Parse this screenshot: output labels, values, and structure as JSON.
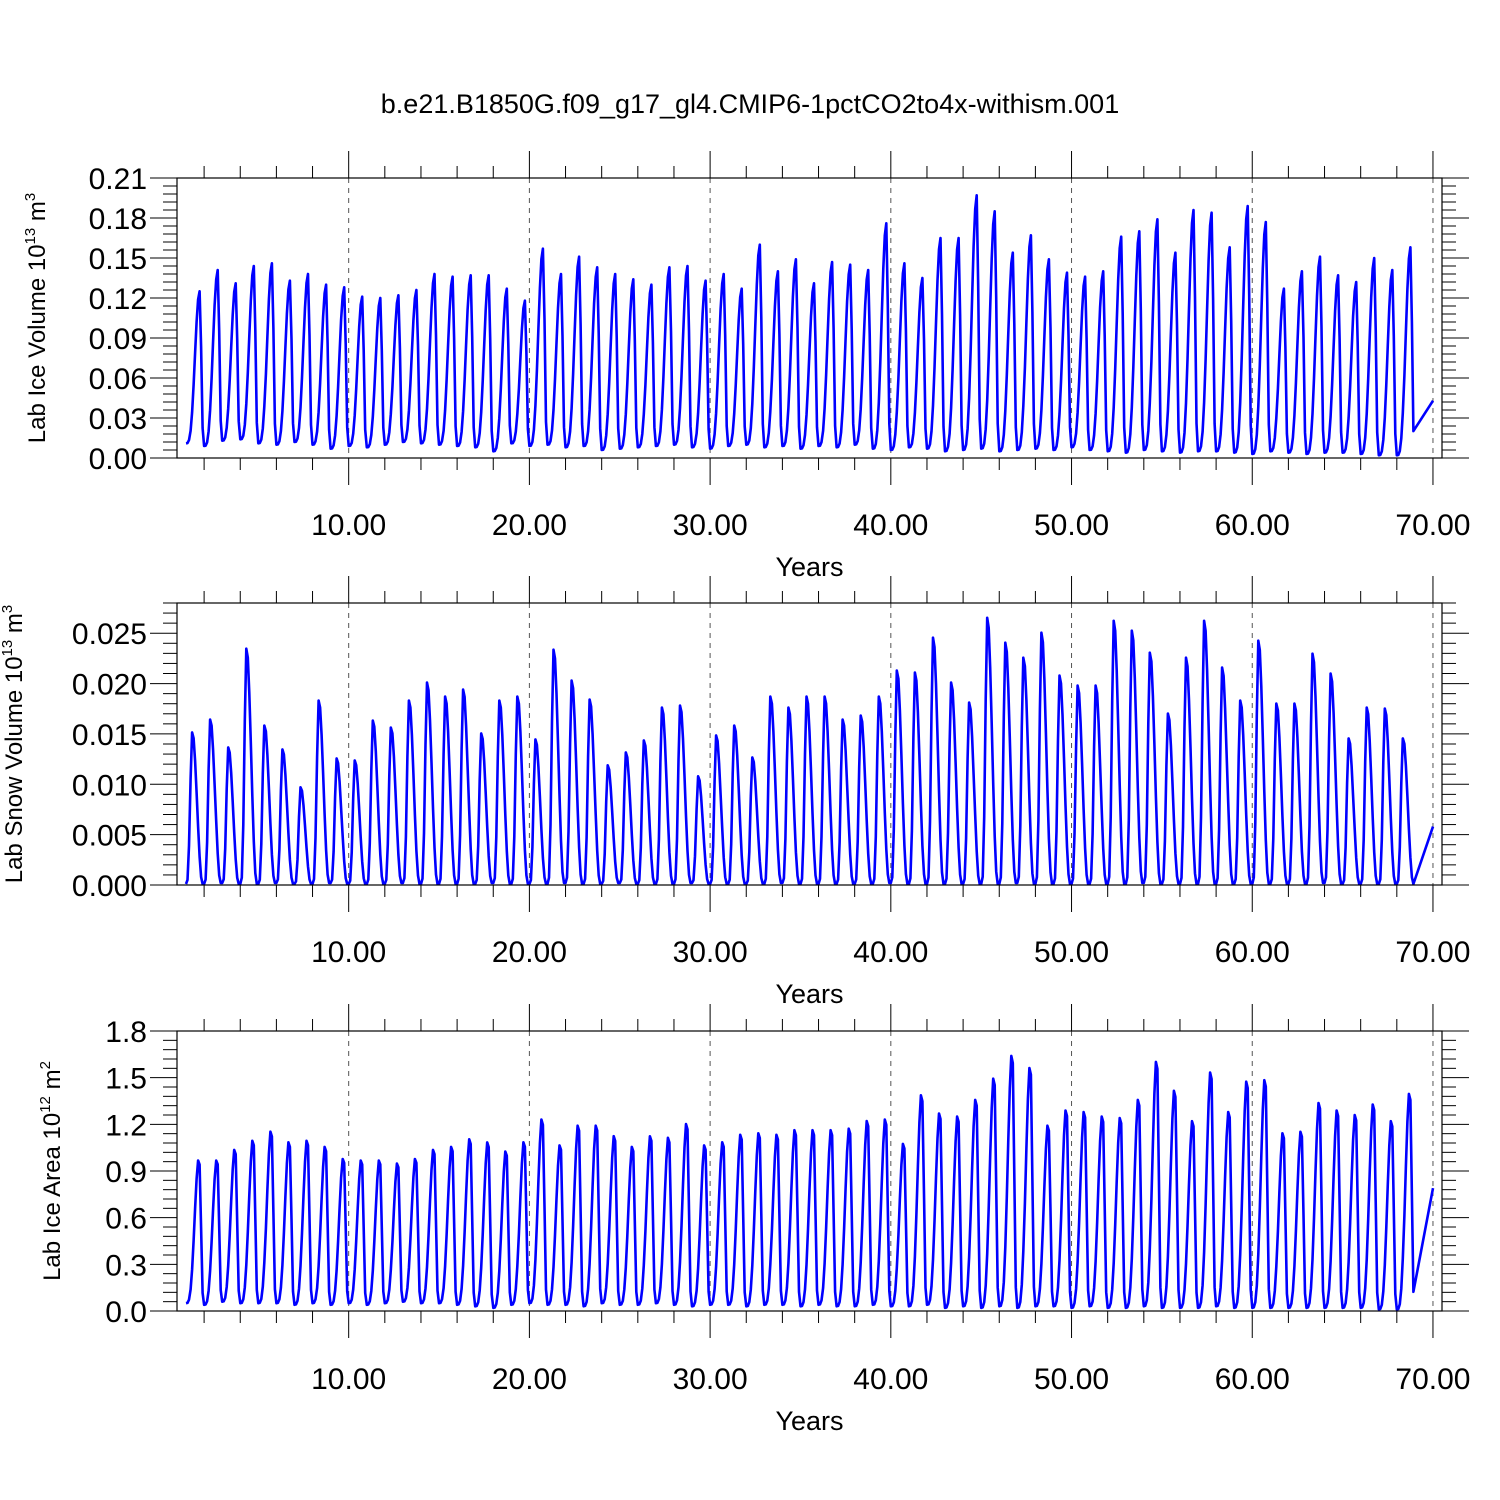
{
  "title": "b.e21.B1850G.f09_g17_gl4.CMIP6-1pctCO2to4x-withism.001",
  "colors": {
    "series": "#0000ff",
    "axes": "#000000",
    "grid": "#555555"
  },
  "chart_data": [
    {
      "type": "line",
      "title": "",
      "ylabel": {
        "main": "Lab Ice Volume 10",
        "exp": "13",
        "unit": " m",
        "unit_exp": "3"
      },
      "xlabel": "Years",
      "xlim": [
        0.5,
        70.5
      ],
      "ylim": [
        0,
        0.21
      ],
      "xticks": [
        10,
        20,
        30,
        40,
        50,
        60,
        70
      ],
      "xtick_labels": [
        "10.00",
        "20.00",
        "30.00",
        "40.00",
        "50.00",
        "60.00",
        "70.00"
      ],
      "yticks": [
        0,
        0.03,
        0.06,
        0.09,
        0.12,
        0.15,
        0.18,
        0.21
      ],
      "ytick_labels": [
        "0.00",
        "0.03",
        "0.06",
        "0.09",
        "0.12",
        "0.15",
        "0.18",
        "0.21"
      ],
      "grid": "x dashed",
      "seasonal_cycle": {
        "period": 1,
        "peak_phase": 0.75
      },
      "series": [
        {
          "x_start": 1,
          "x_end": 70,
          "annual_max": [
            0.125,
            0.141,
            0.131,
            0.144,
            0.146,
            0.133,
            0.138,
            0.13,
            0.128,
            0.121,
            0.12,
            0.122,
            0.126,
            0.138,
            0.136,
            0.137,
            0.137,
            0.127,
            0.118,
            0.157,
            0.138,
            0.151,
            0.143,
            0.138,
            0.134,
            0.13,
            0.143,
            0.144,
            0.133,
            0.138,
            0.127,
            0.16,
            0.14,
            0.149,
            0.131,
            0.147,
            0.145,
            0.141,
            0.176,
            0.146,
            0.135,
            0.165,
            0.165,
            0.197,
            0.185,
            0.154,
            0.167,
            0.149,
            0.139,
            0.136,
            0.14,
            0.166,
            0.17,
            0.179,
            0.154,
            0.186,
            0.184,
            0.158,
            0.189,
            0.177,
            0.127,
            0.14,
            0.151,
            0.137,
            0.132,
            0.15,
            0.141,
            0.158
          ],
          "annual_min": [
            0.011,
            0.009,
            0.013,
            0.014,
            0.011,
            0.01,
            0.012,
            0.01,
            0.007,
            0.009,
            0.008,
            0.01,
            0.012,
            0.011,
            0.01,
            0.009,
            0.008,
            0.005,
            0.011,
            0.009,
            0.01,
            0.008,
            0.009,
            0.006,
            0.007,
            0.008,
            0.009,
            0.01,
            0.008,
            0.007,
            0.009,
            0.01,
            0.008,
            0.009,
            0.007,
            0.009,
            0.008,
            0.01,
            0.007,
            0.006,
            0.008,
            0.007,
            0.005,
            0.006,
            0.007,
            0.005,
            0.006,
            0.007,
            0.006,
            0.008,
            0.006,
            0.005,
            0.004,
            0.006,
            0.005,
            0.004,
            0.005,
            0.005,
            0.004,
            0.003,
            0.005,
            0.004,
            0.003,
            0.004,
            0.004,
            0.003,
            0.002,
            0.002
          ],
          "end_value": 0.043
        }
      ]
    },
    {
      "type": "line",
      "title": "",
      "ylabel": {
        "main": "Lab Snow Volume 10",
        "exp": "13",
        "unit": " m",
        "unit_exp": "3"
      },
      "xlabel": "Years",
      "xlim": [
        0.5,
        70.5
      ],
      "ylim": [
        0,
        0.028
      ],
      "xticks": [
        10,
        20,
        30,
        40,
        50,
        60,
        70
      ],
      "xtick_labels": [
        "10.00",
        "20.00",
        "30.00",
        "40.00",
        "50.00",
        "60.00",
        "70.00"
      ],
      "yticks": [
        0,
        0.005,
        0.01,
        0.015,
        0.02,
        0.025
      ],
      "ytick_labels": [
        "0.000",
        "0.005",
        "0.010",
        "0.015",
        "0.020",
        "0.025"
      ],
      "grid": "x dashed",
      "seasonal_cycle": {
        "period": 1,
        "peak_phase": 0.35
      },
      "series": [
        {
          "x_start": 1,
          "x_end": 70,
          "annual_max": [
            0.0153,
            0.0166,
            0.0138,
            0.0237,
            0.016,
            0.0136,
            0.0098,
            0.0185,
            0.0127,
            0.0125,
            0.0165,
            0.0158,
            0.0185,
            0.0203,
            0.0189,
            0.0196,
            0.0152,
            0.0185,
            0.0189,
            0.0146,
            0.0236,
            0.0205,
            0.0186,
            0.012,
            0.0133,
            0.0145,
            0.0178,
            0.018,
            0.0109,
            0.015,
            0.016,
            0.0128,
            0.0189,
            0.0178,
            0.0189,
            0.0189,
            0.0166,
            0.017,
            0.0189,
            0.0215,
            0.0213,
            0.0248,
            0.0203,
            0.0183,
            0.0268,
            0.0243,
            0.0228,
            0.0253,
            0.021,
            0.02,
            0.02,
            0.0265,
            0.0255,
            0.0233,
            0.0172,
            0.0228,
            0.0265,
            0.0218,
            0.0185,
            0.0245,
            0.0182,
            0.0182,
            0.0232,
            0.0212,
            0.0147,
            0.0178,
            0.0177,
            0.0147
          ],
          "annual_min": [
            0.0001,
            0.0001,
            0.0002,
            0.0001,
            0.0001,
            0.0002,
            0.0001,
            0.0001,
            0.0002,
            0.0001,
            0.0001,
            0.0001,
            0.0002,
            0.0001,
            0.0001,
            0.0001,
            0.0001,
            0.0002,
            0.0001,
            0.0001,
            0.0001,
            0.0002,
            0.0001,
            0.0001,
            0.0002,
            0.0001,
            0.0001,
            0.0001,
            0.0002,
            0.0001,
            0.0001,
            0.0001,
            0.0001,
            0.0002,
            0.0001,
            0.0001,
            0.0001,
            0.0001,
            0.0001,
            0.0002,
            0.0001,
            0.0001,
            0.0001,
            0.0001,
            0.0001,
            0.0001,
            0.0002,
            0.0001,
            0.0001,
            0.0001,
            0.0001,
            0.0001,
            0.0001,
            0.0002,
            0.0001,
            0.0001,
            0.0001,
            0.0001,
            0.0001,
            0.0001,
            0.0001,
            0.0001,
            0.0001,
            0.0002,
            0.0001,
            0.0001,
            0.0001,
            0.0001
          ],
          "end_value": 0.0058
        }
      ]
    },
    {
      "type": "line",
      "title": "",
      "ylabel": {
        "main": "Lab Ice Area 10",
        "exp": "12",
        "unit": " m",
        "unit_exp": "2"
      },
      "xlabel": "Years",
      "xlim": [
        0.5,
        70.5
      ],
      "ylim": [
        0,
        1.8
      ],
      "xticks": [
        10,
        20,
        30,
        40,
        50,
        60,
        70
      ],
      "xtick_labels": [
        "10.00",
        "20.00",
        "30.00",
        "40.00",
        "50.00",
        "60.00",
        "70.00"
      ],
      "yticks": [
        0,
        0.3,
        0.6,
        0.9,
        1.2,
        1.5,
        1.8
      ],
      "ytick_labels": [
        "0.0",
        "0.3",
        "0.6",
        "0.9",
        "1.2",
        "1.5",
        "1.8"
      ],
      "grid": "x dashed",
      "seasonal_cycle": {
        "period": 1,
        "peak_phase": 0.72
      },
      "series": [
        {
          "x_start": 1,
          "x_end": 70,
          "annual_max": [
            0.99,
            0.99,
            1.06,
            1.12,
            1.18,
            1.11,
            1.12,
            1.08,
            1.0,
            0.99,
            0.99,
            0.97,
            1.0,
            1.06,
            1.08,
            1.13,
            1.11,
            1.05,
            1.11,
            1.26,
            1.09,
            1.22,
            1.22,
            1.15,
            1.08,
            1.15,
            1.14,
            1.23,
            1.09,
            1.11,
            1.16,
            1.17,
            1.16,
            1.19,
            1.19,
            1.19,
            1.2,
            1.25,
            1.26,
            1.1,
            1.42,
            1.3,
            1.28,
            1.39,
            1.53,
            1.68,
            1.6,
            1.22,
            1.32,
            1.31,
            1.28,
            1.27,
            1.39,
            1.64,
            1.45,
            1.25,
            1.57,
            1.31,
            1.51,
            1.52,
            1.17,
            1.18,
            1.37,
            1.32,
            1.29,
            1.36,
            1.25,
            1.43
          ],
          "annual_min": [
            0.05,
            0.04,
            0.06,
            0.05,
            0.05,
            0.05,
            0.04,
            0.05,
            0.04,
            0.05,
            0.04,
            0.05,
            0.06,
            0.05,
            0.05,
            0.04,
            0.03,
            0.02,
            0.04,
            0.05,
            0.04,
            0.04,
            0.03,
            0.05,
            0.04,
            0.04,
            0.05,
            0.04,
            0.03,
            0.04,
            0.04,
            0.03,
            0.04,
            0.04,
            0.03,
            0.04,
            0.03,
            0.03,
            0.04,
            0.03,
            0.03,
            0.04,
            0.02,
            0.03,
            0.02,
            0.03,
            0.02,
            0.03,
            0.03,
            0.02,
            0.03,
            0.02,
            0.02,
            0.03,
            0.02,
            0.02,
            0.02,
            0.03,
            0.02,
            0.02,
            0.02,
            0.02,
            0.02,
            0.02,
            0.02,
            0.02,
            0.01,
            0.01
          ],
          "end_value": 0.79
        }
      ]
    }
  ]
}
